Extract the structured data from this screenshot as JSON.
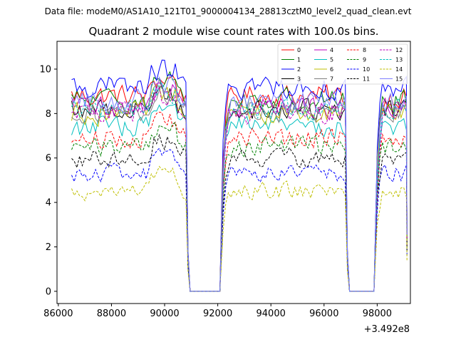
{
  "chart_data": {
    "type": "line",
    "suptitle": "Data file: modeM0/AS1A10_121T01_9000004134_28813cztM0_level2_quad_clean.evt",
    "title": "Quadrant 2 module wise count rates with 100.0s bins.",
    "xlabel": "",
    "ylabel": "",
    "x_offset_label": "+3.492e8",
    "xlim": [
      85950,
      99250
    ],
    "ylim": [
      -0.55,
      11.25
    ],
    "xticks": [
      86000,
      88000,
      90000,
      92000,
      94000,
      96000,
      98000
    ],
    "xtick_labels": [
      "86000",
      "88000",
      "90000",
      "92000",
      "94000",
      "96000",
      "98000"
    ],
    "yticks": [
      0,
      2,
      4,
      6,
      8,
      10
    ],
    "ytick_labels": [
      "0",
      "2",
      "4",
      "6",
      "8",
      "10"
    ],
    "grid": false,
    "legend_position": "top-right",
    "segments": [
      {
        "start": 86500,
        "end": 90800
      },
      {
        "start": 92200,
        "end": 96800
      },
      {
        "start": 98000,
        "end": 99100
      }
    ],
    "series": [
      {
        "name": "0",
        "color": "#ff0000",
        "dash": "solid",
        "level": 8.8
      },
      {
        "name": "1",
        "color": "#008000",
        "dash": "solid",
        "level": 8.6
      },
      {
        "name": "2",
        "color": "#0000ff",
        "dash": "solid",
        "level": 9.2
      },
      {
        "name": "3",
        "color": "#000000",
        "dash": "solid",
        "level": 8.2
      },
      {
        "name": "4",
        "color": "#bf00bf",
        "dash": "solid",
        "level": 8.3
      },
      {
        "name": "5",
        "color": "#00bfbf",
        "dash": "solid",
        "level": 7.4
      },
      {
        "name": "6",
        "color": "#bfbf00",
        "dash": "solid",
        "level": 8.0
      },
      {
        "name": "7",
        "color": "#7f7f7f",
        "dash": "solid",
        "level": 8.1
      },
      {
        "name": "8",
        "color": "#ff0000",
        "dash": "dashed",
        "level": 6.9
      },
      {
        "name": "9",
        "color": "#008000",
        "dash": "dashed",
        "level": 6.5
      },
      {
        "name": "10",
        "color": "#0000ff",
        "dash": "dashed",
        "level": 5.3
      },
      {
        "name": "11",
        "color": "#000000",
        "dash": "dashed",
        "level": 6.0
      },
      {
        "name": "12",
        "color": "#bf00bf",
        "dash": "dashed",
        "level": 8.0
      },
      {
        "name": "13",
        "color": "#00bfbf",
        "dash": "dashed",
        "level": 8.2
      },
      {
        "name": "14",
        "color": "#bfbf00",
        "dash": "dashed",
        "level": 4.5
      },
      {
        "name": "15",
        "color": "#7f7fff",
        "dash": "solid",
        "level": 8.5
      }
    ]
  }
}
